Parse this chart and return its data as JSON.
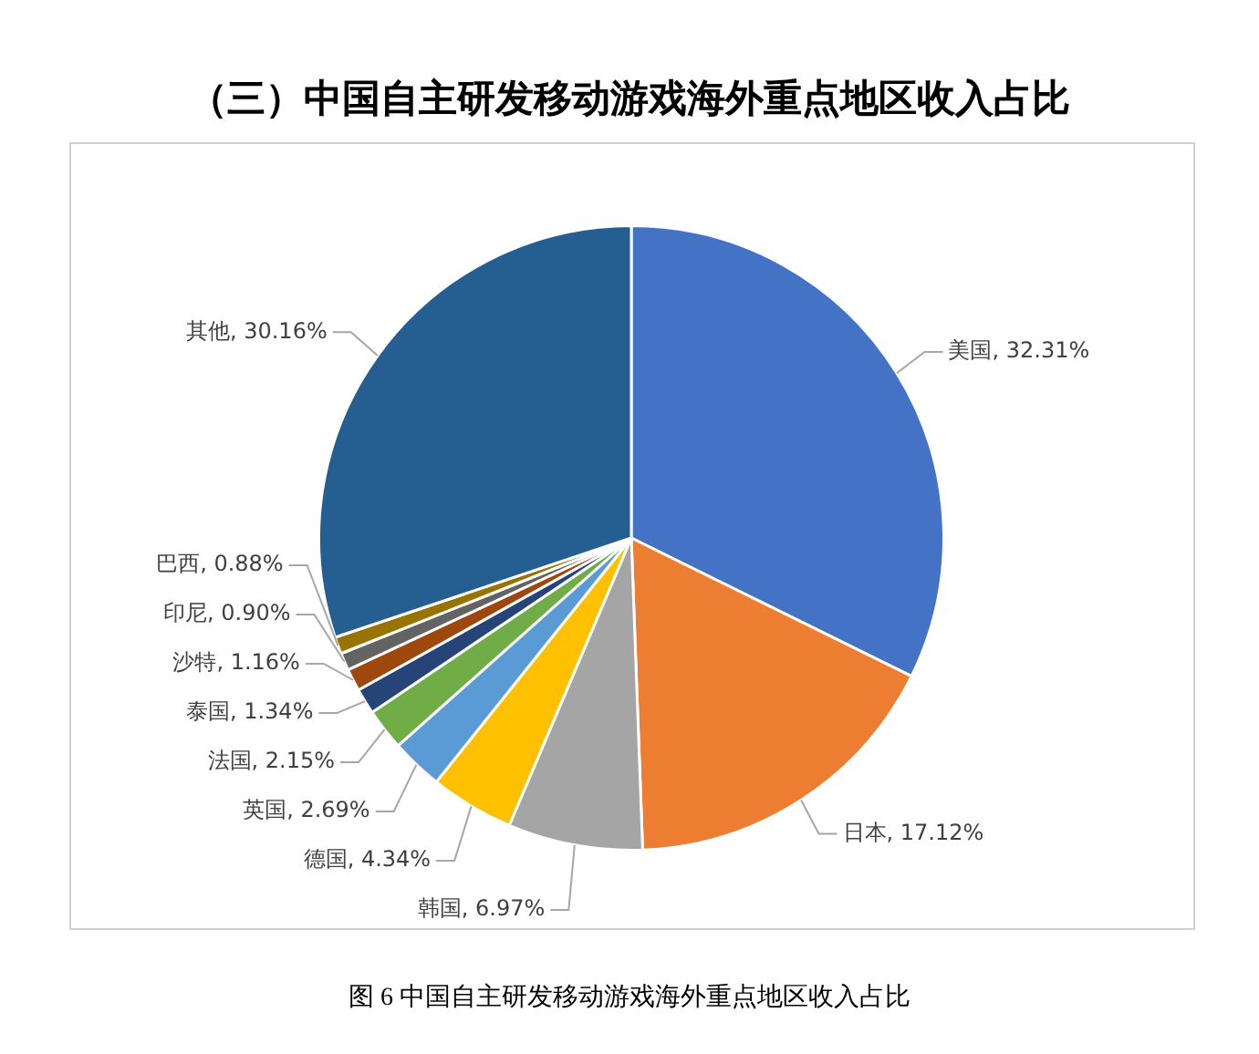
{
  "chart_data": {
    "type": "pie",
    "title": "（三）中国自主研发移动游戏海外重点地区收入占比",
    "categories": [
      "美国",
      "日本",
      "韩国",
      "德国",
      "英国",
      "法国",
      "泰国",
      "沙特",
      "印尼",
      "巴西",
      "其他"
    ],
    "values": [
      32.31,
      17.12,
      6.97,
      4.34,
      2.69,
      2.15,
      1.34,
      1.16,
      0.9,
      0.88,
      30.16
    ],
    "colors": [
      "#4472c4",
      "#ed7d31",
      "#a5a5a5",
      "#ffc000",
      "#5b9bd5",
      "#70ad47",
      "#264478",
      "#9e480e",
      "#636363",
      "#997300",
      "#255e91"
    ],
    "value_labels": [
      "32.31%",
      "17.12%",
      "6.97%",
      "4.34%",
      "2.69%",
      "2.15%",
      "1.34%",
      "1.16%",
      "0.90%",
      "0.88%",
      "30.16%"
    ],
    "annotations": [
      "图 6 中国自主研发移动游戏海外重点地区收入占比"
    ]
  }
}
